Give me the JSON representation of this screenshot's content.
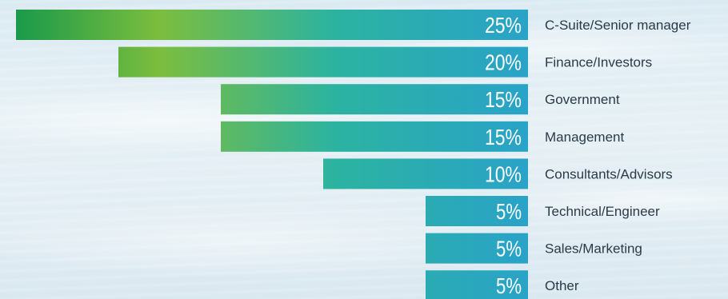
{
  "chart_data": {
    "type": "bar",
    "orientation": "horizontal",
    "categories": [
      "C-Suite/Senior manager",
      "Finance/Investors",
      "Government",
      "Management",
      "Consultants/Advisors",
      "Technical/Engineer",
      "Sales/Marketing",
      "Other"
    ],
    "values": [
      25,
      20,
      15,
      15,
      10,
      5,
      5,
      5
    ],
    "value_labels": [
      "25%",
      "20%",
      "15%",
      "15%",
      "10%",
      "5%",
      "5%",
      "5%"
    ],
    "unit": "%",
    "xlim": [
      0,
      25
    ],
    "grid": false,
    "title": "",
    "xlabel": "",
    "ylabel": "",
    "colors": {
      "bar_right": "#29a3c8",
      "bar_mid": "#2cb3a0",
      "bar_lime": "#7cbd3e",
      "bar_left": "#1a9a4a",
      "label_text": "#2a3a48",
      "value_text": "#ffffff"
    }
  }
}
